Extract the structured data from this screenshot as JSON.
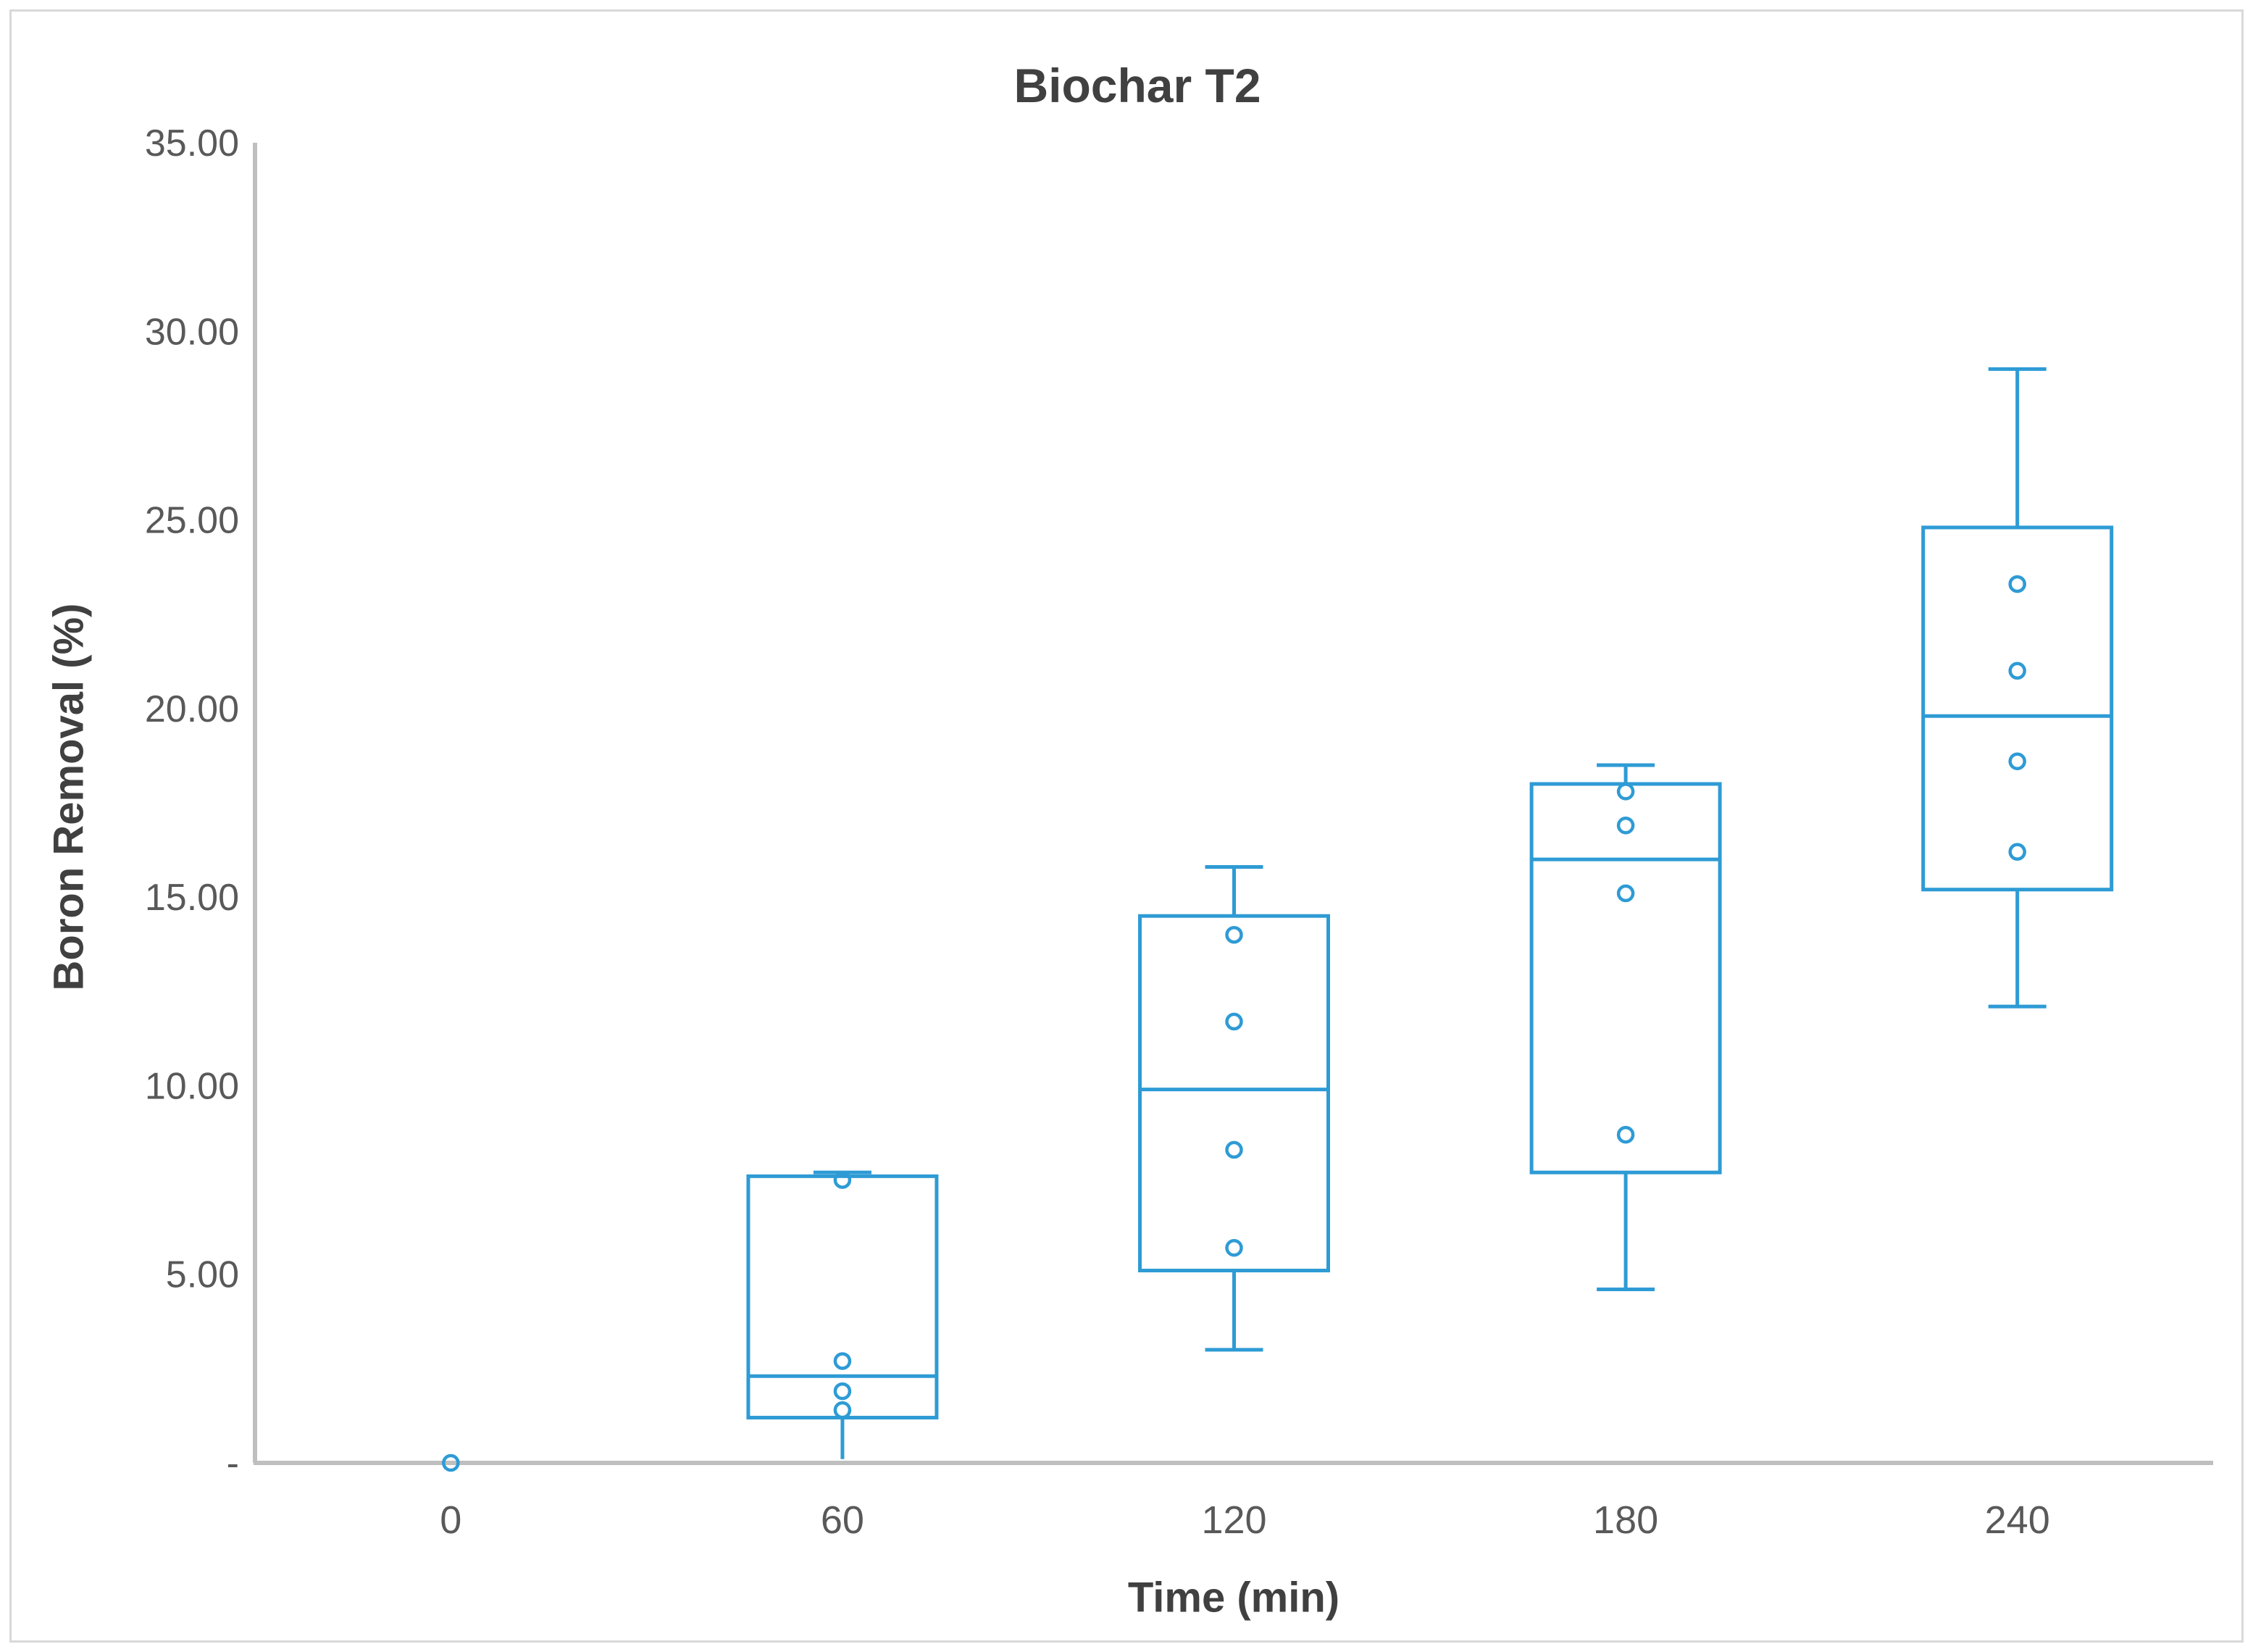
{
  "chart_data": {
    "type": "box",
    "title": "Biochar T2",
    "xlabel": "Time (min)",
    "ylabel": "Boron Removal (%)",
    "x_categories": [
      "0",
      "60",
      "120",
      "180",
      "240"
    ],
    "ylim": [
      0,
      35
    ],
    "yticks": [
      {
        "value": 35,
        "label": "35.00"
      },
      {
        "value": 30,
        "label": "30.00"
      },
      {
        "value": 25,
        "label": "25.00"
      },
      {
        "value": 20,
        "label": "20.00"
      },
      {
        "value": 15,
        "label": "15.00"
      },
      {
        "value": 10,
        "label": "10.00"
      },
      {
        "value": 5,
        "label": "5.00"
      },
      {
        "value": 0,
        "label": "-"
      }
    ],
    "grid": false,
    "legend": "none",
    "series": [
      {
        "category": "0",
        "box": null,
        "points": [
          0.0
        ]
      },
      {
        "category": "60",
        "box": {
          "whisker_min": 0.1,
          "q1": 1.2,
          "median": 2.3,
          "q3": 7.6,
          "whisker_max": 7.7,
          "min_cap_visible": false
        },
        "points": [
          7.5,
          2.7,
          1.9,
          1.4
        ]
      },
      {
        "category": "120",
        "box": {
          "whisker_min": 3.0,
          "q1": 5.1,
          "median": 9.9,
          "q3": 14.5,
          "whisker_max": 15.8,
          "min_cap_visible": true
        },
        "points": [
          14.0,
          11.7,
          8.3,
          5.7
        ]
      },
      {
        "category": "180",
        "box": {
          "whisker_min": 4.6,
          "q1": 7.7,
          "median": 16.0,
          "q3": 18.0,
          "whisker_max": 18.5,
          "min_cap_visible": true
        },
        "points": [
          17.8,
          16.9,
          15.1,
          8.7
        ]
      },
      {
        "category": "240",
        "box": {
          "whisker_min": 12.1,
          "q1": 15.2,
          "median": 19.8,
          "q3": 24.8,
          "whisker_max": 29.0,
          "min_cap_visible": true
        },
        "points": [
          23.3,
          21.0,
          18.6,
          16.2
        ]
      }
    ],
    "colors": {
      "series": "#2E9BD5",
      "axis_line": "#BFBFBF",
      "tick_label": "#595959",
      "title": "#404040",
      "frame_border": "#D9D9D9"
    }
  }
}
